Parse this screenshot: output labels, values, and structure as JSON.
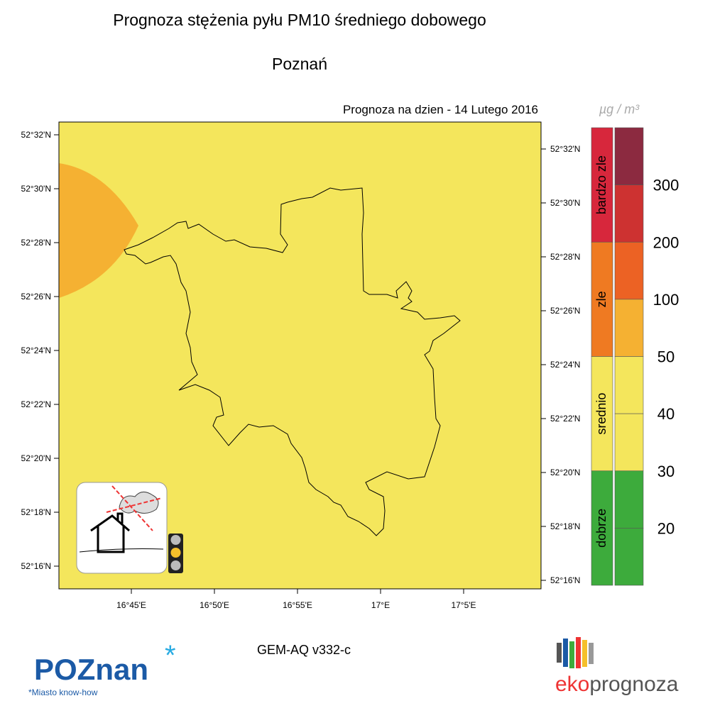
{
  "header": {
    "title": "Prognoza stężenia pyłu PM10 średniego dobowego",
    "city": "Poznań",
    "forecast_date": "Prognoza na dzien -  14 Lutego 2016"
  },
  "map": {
    "lat_labels_left": [
      "52°32'N",
      "52°30'N",
      "52°28'N",
      "52°26'N",
      "52°24'N",
      "52°22'N",
      "52°20'N",
      "52°18'N",
      "52°16'N"
    ],
    "lat_labels_right": [
      "52°32'N",
      "52°30'N",
      "52°28'N",
      "52°26'N",
      "52°24'N",
      "52°22'N",
      "52°20'N",
      "52°18'N",
      "52°16'N"
    ],
    "lon_labels": [
      "16°45'E",
      "16°50'E",
      "16°55'E",
      "17°E",
      "17°5'E"
    ],
    "background_color": "#f4e65c",
    "plume_color": "#f5b132"
  },
  "legend": {
    "unit": "µg / m³",
    "categories": [
      {
        "label": "bardzo zle",
        "color": "#d7273c"
      },
      {
        "label": "zle",
        "color": "#ef7a22"
      },
      {
        "label": "srednio",
        "color": "#f4e65c"
      },
      {
        "label": "dobrze",
        "color": "#3dab3c"
      }
    ],
    "band_colors": [
      "#8c2a40",
      "#cd3231",
      "#ec6224",
      "#f5b132",
      "#f4e65c",
      "#f4e65c",
      "#3dab3c",
      "#3dab3c"
    ],
    "levels": [
      300,
      200,
      100,
      50,
      40,
      30,
      20
    ]
  },
  "footer": {
    "model": "GEM-AQ v332-c",
    "left_logo": "POZnan",
    "slogan": "*Miasto know-how",
    "right_logo_eko": "eko",
    "right_logo_prognoza": "prognoza"
  }
}
